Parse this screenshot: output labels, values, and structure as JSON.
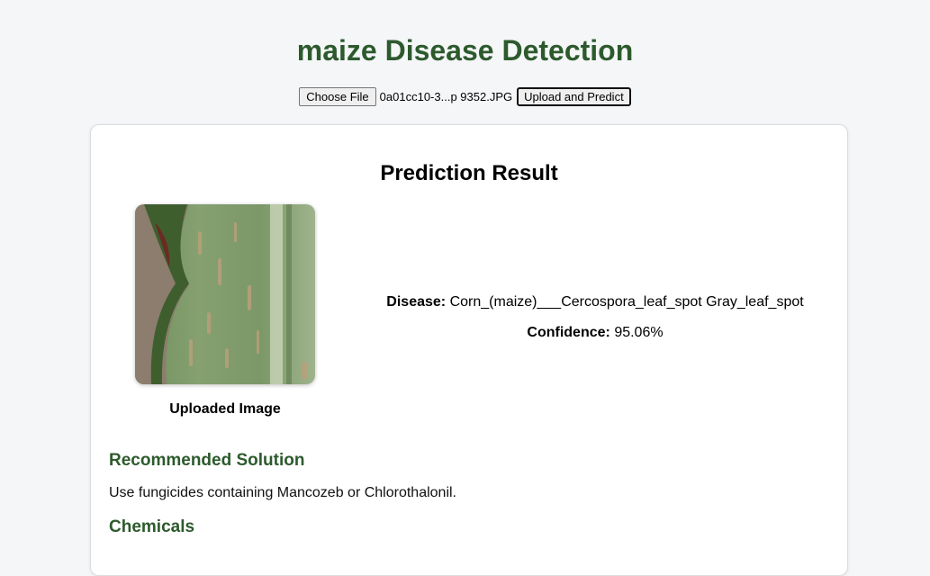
{
  "header": {
    "title": "maize Disease Detection"
  },
  "upload": {
    "choose_label": "Choose File",
    "file_name": "0a01cc10-3...p 9352.JPG",
    "submit_label": "Upload and Predict"
  },
  "result": {
    "title": "Prediction Result",
    "image_caption": "Uploaded Image",
    "disease_label": "Disease:",
    "disease_value": "Corn_(maize)___Cercospora_leaf_spot Gray_leaf_spot",
    "confidence_label": "Confidence:",
    "confidence_value": "95.06%"
  },
  "solution": {
    "title": "Recommended Solution",
    "text": "Use fungicides containing Mancozeb or Chlorothalonil."
  },
  "chemicals": {
    "title": "Chemicals"
  },
  "colors": {
    "heading_green": "#2d5a2d",
    "page_bg": "#f5f6f8",
    "card_bg": "#ffffff"
  }
}
